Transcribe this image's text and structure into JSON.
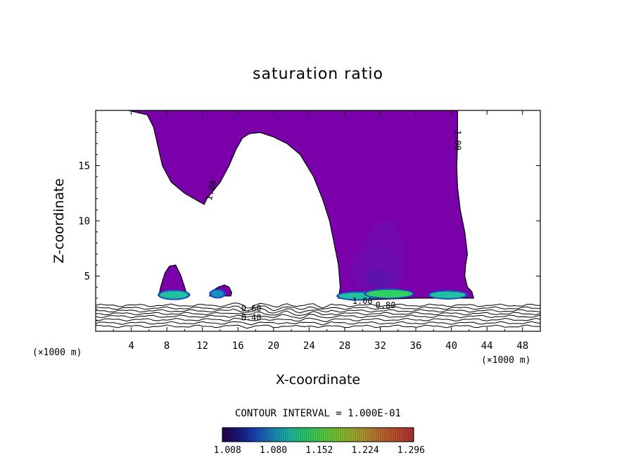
{
  "chart_data": {
    "type": "contour",
    "title": "saturation ratio",
    "xlabel": "X-coordinate",
    "ylabel": "Z-coordinate",
    "x_unit": "(×1000 m)",
    "xlim": [
      0,
      50
    ],
    "ylim": [
      0,
      20
    ],
    "x_ticks": [
      4,
      8,
      12,
      16,
      20,
      24,
      28,
      32,
      36,
      40,
      44,
      48
    ],
    "y_ticks": [
      5,
      10,
      15
    ],
    "contour_interval_text": "CONTOUR INTERVAL = 1.000E-01",
    "contour_labels": [
      {
        "text": "1.00",
        "x": 13.3,
        "y": 12.7,
        "rot": -75
      },
      {
        "text": "1.00",
        "x": 40.4,
        "y": 17.3,
        "rot": 90
      },
      {
        "text": "0.60",
        "x": 17.5,
        "y": 1.8,
        "rot": 0
      },
      {
        "text": "0.40",
        "x": 17.5,
        "y": 1.0,
        "rot": 0
      },
      {
        "text": "1.00",
        "x": 30.0,
        "y": 2.5,
        "rot": 0
      },
      {
        "text": "0.80",
        "x": 32.6,
        "y": 2.1,
        "rot": 0
      }
    ],
    "colorbar": {
      "ticks": [
        "1.008",
        "1.080",
        "1.152",
        "1.224",
        "1.296"
      ],
      "range": [
        1.0,
        1.3
      ],
      "colors": [
        "#2a0050",
        "#1a1a80",
        "#1a4cc0",
        "#1a90c0",
        "#20c0a0",
        "#30d060",
        "#60d040",
        "#90c030",
        "#b0a030",
        "#c07030",
        "#c05030",
        "#b03030"
      ]
    },
    "filled_regions": [
      {
        "name": "main-cloud",
        "color": "#7a00aa",
        "level": 1.0,
        "outline": [
          [
            3.7,
            20
          ],
          [
            5.8,
            19.6
          ],
          [
            6.5,
            18.5
          ],
          [
            7.5,
            15
          ],
          [
            8.5,
            13.5
          ],
          [
            10,
            12.5
          ],
          [
            11.5,
            11.8
          ],
          [
            12.2,
            11.5
          ],
          [
            12.5,
            12
          ],
          [
            13,
            12.5
          ],
          [
            14,
            13.5
          ],
          [
            15,
            15
          ],
          [
            15.8,
            16.5
          ],
          [
            16.5,
            17.5
          ],
          [
            17.3,
            17.9
          ],
          [
            18.5,
            18
          ],
          [
            20,
            17.6
          ],
          [
            21.5,
            17
          ],
          [
            23,
            16
          ],
          [
            24.5,
            14
          ],
          [
            25.5,
            12
          ],
          [
            26.3,
            10
          ],
          [
            26.8,
            8
          ],
          [
            27.3,
            6
          ],
          [
            27.5,
            4
          ],
          [
            27.3,
            3
          ],
          [
            29,
            2.8
          ],
          [
            32,
            2.9
          ],
          [
            36,
            3
          ],
          [
            40,
            3
          ],
          [
            42.5,
            3
          ],
          [
            42.3,
            3.6
          ],
          [
            41.8,
            4
          ],
          [
            41.5,
            5
          ],
          [
            41.6,
            6
          ],
          [
            41.8,
            7
          ],
          [
            41.5,
            9
          ],
          [
            41.0,
            11
          ],
          [
            40.7,
            13
          ],
          [
            40.6,
            15
          ],
          [
            40.7,
            17
          ],
          [
            40.7,
            20
          ]
        ]
      },
      {
        "name": "small-cloud-left",
        "color": "#7a00aa",
        "level": 1.0,
        "outline": [
          [
            7.1,
            3.2
          ],
          [
            7.3,
            4
          ],
          [
            7.8,
            5.3
          ],
          [
            8.3,
            5.9
          ],
          [
            9.0,
            6.0
          ],
          [
            9.6,
            5.0
          ],
          [
            10.0,
            4.0
          ],
          [
            10.3,
            3.2
          ]
        ]
      },
      {
        "name": "small-cloud-mid",
        "color": "#7a00aa",
        "level": 1.0,
        "outline": [
          [
            12.8,
            3.2
          ],
          [
            13.2,
            3.7
          ],
          [
            13.8,
            4.0
          ],
          [
            14.5,
            4.2
          ],
          [
            15.0,
            4.0
          ],
          [
            15.3,
            3.5
          ],
          [
            15.2,
            3.2
          ]
        ]
      }
    ],
    "hotspots": [
      {
        "x": 8.8,
        "y": 3.3,
        "w": 1.6,
        "h": 0.35,
        "color": "#20c0a0"
      },
      {
        "x": 13.7,
        "y": 3.4,
        "w": 0.7,
        "h": 0.3,
        "color": "#1a90c0"
      },
      {
        "x": 29.5,
        "y": 3.2,
        "w": 2.2,
        "h": 0.3,
        "color": "#20c0a0"
      },
      {
        "x": 33.0,
        "y": 3.4,
        "w": 2.6,
        "h": 0.35,
        "color": "#30d060"
      },
      {
        "x": 39.6,
        "y": 3.3,
        "w": 2.0,
        "h": 0.3,
        "color": "#20c0a0"
      }
    ],
    "shading_blobs": [
      {
        "x": 31.5,
        "y": 5.5,
        "rx": 2.8,
        "ry": 2.2,
        "color": "#6a10b0"
      },
      {
        "x": 32.5,
        "y": 6.5,
        "rx": 2.3,
        "ry": 3.5,
        "color": "#6a10b0"
      },
      {
        "x": 31.8,
        "y": 4.8,
        "rx": 1.5,
        "ry": 0.9,
        "color": "#5018a8"
      }
    ],
    "surface_contours": [
      {
        "level": 0.9,
        "base": 2.35
      },
      {
        "level": 0.8,
        "base": 2.1
      },
      {
        "level": 0.7,
        "base": 1.85
      },
      {
        "level": 0.6,
        "base": 1.6
      },
      {
        "level": 0.5,
        "base": 1.35
      },
      {
        "level": 0.4,
        "base": 1.05
      },
      {
        "level": 0.3,
        "base": 0.75
      },
      {
        "level": 0.2,
        "base": 0.45
      }
    ]
  }
}
